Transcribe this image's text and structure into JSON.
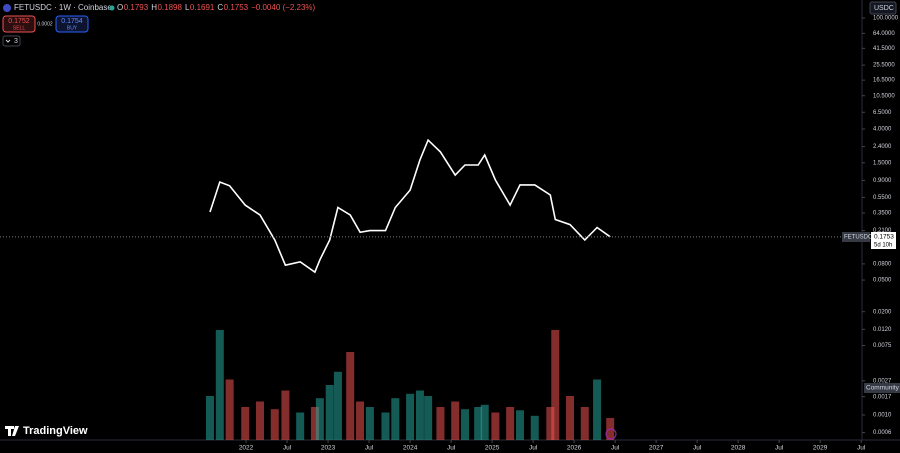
{
  "header": {
    "symbol": "FETUSDC · 1W · Coinbase",
    "ohlc": [
      {
        "label": "O",
        "value": "0.1793"
      },
      {
        "label": "H",
        "value": "0.1898"
      },
      {
        "label": "L",
        "value": "0.1691"
      },
      {
        "label": "C",
        "value": "0.1753"
      }
    ],
    "change": "−0.0040 (−2.23%)",
    "sell": {
      "price": "0.1752",
      "label": "SELL"
    },
    "spread": "0.0002",
    "buy": {
      "price": "0.1754",
      "label": "BUY"
    },
    "indicators": "3",
    "currency": "USDC"
  },
  "price_tag": {
    "symbol": "FETUSDC",
    "price": "0.1753",
    "countdown": "5d 10h"
  },
  "community": "Community",
  "logo": "TradingView",
  "chart_data": {
    "type": "line",
    "log_scale": true,
    "color": "#ffffff",
    "x": [
      2021.56,
      2021.68,
      2021.8,
      2021.99,
      2022.17,
      2022.35,
      2022.48,
      2022.66,
      2022.84,
      2022.9,
      2023.02,
      2023.12,
      2023.27,
      2023.39,
      2023.51,
      2023.7,
      2023.82,
      2024.0,
      2024.12,
      2024.22,
      2024.37,
      2024.55,
      2024.67,
      2024.83,
      2024.91,
      2025.04,
      2025.22,
      2025.34,
      2025.52,
      2025.71,
      2025.77,
      2025.95,
      2026.13,
      2026.28,
      2026.44
    ],
    "series": [
      {
        "name": "FETUSDC",
        "color": "#ffffff",
        "values": [
          0.36,
          0.86,
          0.77,
          0.44,
          0.33,
          0.16,
          0.077,
          0.085,
          0.063,
          0.09,
          0.16,
          0.41,
          0.33,
          0.2,
          0.21,
          0.21,
          0.41,
          0.68,
          1.63,
          2.9,
          2.06,
          1.05,
          1.41,
          1.41,
          1.88,
          0.91,
          0.44,
          0.79,
          0.79,
          0.59,
          0.29,
          0.25,
          0.16,
          0.23,
          0.1753
        ]
      },
      {
        "name": "Volume",
        "axis": "y2",
        "values": [
          40,
          100,
          55,
          30,
          35,
          28,
          45,
          25,
          30,
          38,
          50,
          62,
          80,
          35,
          30,
          25,
          38,
          42,
          45,
          40,
          30,
          35,
          28,
          30,
          32,
          25,
          30,
          27,
          22,
          30,
          100,
          40,
          30,
          55,
          20
        ]
      }
    ],
    "up_color": "#26a69a",
    "down_color": "#ef5350",
    "ylim": [
      0.000484,
      168.6
    ],
    "yticks": [
      {
        "value": 100,
        "label": "100.0000"
      },
      {
        "value": 64,
        "label": "64.0000"
      },
      {
        "value": 41.5,
        "label": "41.5000"
      },
      {
        "value": 25.5,
        "label": "25.5000"
      },
      {
        "value": 16.5,
        "label": "16.5000"
      },
      {
        "value": 10.5,
        "label": "10.5000"
      },
      {
        "value": 6.5,
        "label": "6.5000"
      },
      {
        "value": 4,
        "label": "4.0000"
      },
      {
        "value": 2.4,
        "label": "2.4000"
      },
      {
        "value": 1.5,
        "label": "1.5000"
      },
      {
        "value": 0.9,
        "label": "0.9000"
      },
      {
        "value": 0.55,
        "label": "0.5500"
      },
      {
        "value": 0.35,
        "label": "0.3500"
      },
      {
        "value": 0.21,
        "label": "0.2100"
      },
      {
        "value": 0.08,
        "label": "0.0800"
      },
      {
        "value": 0.05,
        "label": "0.0500"
      },
      {
        "value": 0.02,
        "label": "0.0200"
      },
      {
        "value": 0.012,
        "label": "0.0120"
      },
      {
        "value": 0.0075,
        "label": "0.0075"
      },
      {
        "value": 0.0027,
        "label": "0.0027"
      },
      {
        "value": 0.0017,
        "label": "0.0017"
      },
      {
        "value": 0.001,
        "label": "0.0010"
      },
      {
        "value": 0.0006,
        "label": "0.0006"
      }
    ],
    "y2lim": [
      0,
      100
    ],
    "xlim": [
      2019,
      2029.51
    ],
    "xticks": [
      2022,
      {
        "value": 2022.5,
        "label": "Jul"
      },
      2023,
      {
        "value": 2023.5,
        "label": "Jul"
      },
      2024,
      {
        "value": 2024.5,
        "label": "Jul"
      },
      2025,
      {
        "value": 2025.5,
        "label": "Jul"
      },
      2026,
      {
        "value": 2026.5,
        "label": "Jul"
      },
      2027,
      {
        "value": 2027.5,
        "label": "Jul"
      },
      2028,
      {
        "value": 2028.5,
        "label": "Jul"
      },
      2029,
      {
        "value": 2029.5,
        "label": "Jul"
      }
    ]
  }
}
